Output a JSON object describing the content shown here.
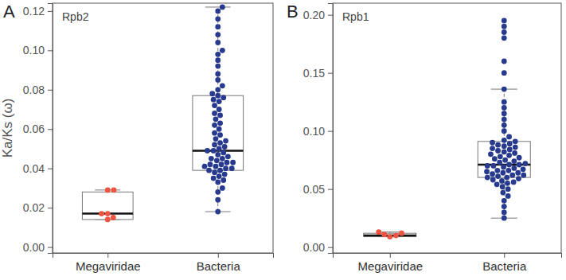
{
  "chart_data": [
    {
      "type": "box",
      "panel": "A",
      "title": "Rpb2",
      "y_label": "Ka/Ks (ω)",
      "categories": [
        "Megaviridae",
        "Bacteria"
      ],
      "colors": [
        "#f0533f",
        "#283a8e"
      ],
      "ylim": [
        -0.003,
        0.124
      ],
      "yticks": [
        {
          "value": 0,
          "label": "0.00"
        },
        {
          "value": 0.02,
          "label": "0.02"
        },
        {
          "value": 0.04,
          "label": "0.04"
        },
        {
          "value": 0.06,
          "label": "0.06"
        },
        {
          "value": 0.08,
          "label": "0.08"
        },
        {
          "value": 0.1,
          "label": "0.10"
        },
        {
          "value": 0.12,
          "label": "0.12"
        }
      ],
      "boxes": [
        {
          "whisker_low": 0.014,
          "q1": 0.014,
          "median": 0.017,
          "q3": 0.028,
          "whisker_high": 0.029
        },
        {
          "whisker_low": 0.018,
          "q1": 0.039,
          "median": 0.049,
          "q3": 0.077,
          "whisker_high": 0.122
        }
      ],
      "points": [
        [
          0.014,
          0.015,
          0.017,
          0.017,
          0.029,
          0.029
        ],
        [
          0.018,
          0.024,
          0.028,
          0.03,
          0.033,
          0.034,
          0.035,
          0.036,
          0.037,
          0.038,
          0.039,
          0.039,
          0.04,
          0.04,
          0.041,
          0.041,
          0.042,
          0.042,
          0.043,
          0.043,
          0.044,
          0.045,
          0.045,
          0.046,
          0.047,
          0.048,
          0.049,
          0.049,
          0.05,
          0.051,
          0.052,
          0.053,
          0.054,
          0.055,
          0.057,
          0.058,
          0.06,
          0.062,
          0.063,
          0.065,
          0.067,
          0.068,
          0.07,
          0.072,
          0.074,
          0.075,
          0.076,
          0.077,
          0.078,
          0.08,
          0.082,
          0.085,
          0.088,
          0.092,
          0.095,
          0.098,
          0.1,
          0.104,
          0.108,
          0.112,
          0.116,
          0.12,
          0.122
        ]
      ]
    },
    {
      "type": "box",
      "panel": "B",
      "title": "Rpb1",
      "categories": [
        "Megaviridae",
        "Bacteria"
      ],
      "colors": [
        "#f0533f",
        "#283a8e"
      ],
      "ylim": [
        -0.005,
        0.21
      ],
      "yticks": [
        {
          "value": 0,
          "label": "0.00"
        },
        {
          "value": 0.05,
          "label": "0.05"
        },
        {
          "value": 0.1,
          "label": "0.10"
        },
        {
          "value": 0.15,
          "label": "0.15"
        },
        {
          "value": 0.2,
          "label": "0.20"
        }
      ],
      "boxes": [
        {
          "whisker_low": 0.009,
          "q1": 0.009,
          "median": 0.01,
          "q3": 0.012,
          "whisker_high": 0.013
        },
        {
          "whisker_low": 0.025,
          "q1": 0.06,
          "median": 0.071,
          "q3": 0.091,
          "whisker_high": 0.136
        }
      ],
      "points": [
        [
          0.009,
          0.01,
          0.011,
          0.012,
          0.013
        ],
        [
          0.025,
          0.03,
          0.035,
          0.04,
          0.044,
          0.047,
          0.05,
          0.052,
          0.054,
          0.055,
          0.056,
          0.057,
          0.058,
          0.059,
          0.06,
          0.06,
          0.061,
          0.062,
          0.062,
          0.063,
          0.064,
          0.064,
          0.065,
          0.066,
          0.066,
          0.067,
          0.068,
          0.069,
          0.07,
          0.07,
          0.071,
          0.071,
          0.072,
          0.073,
          0.074,
          0.075,
          0.076,
          0.077,
          0.078,
          0.079,
          0.08,
          0.081,
          0.082,
          0.083,
          0.084,
          0.085,
          0.086,
          0.087,
          0.088,
          0.089,
          0.09,
          0.091,
          0.092,
          0.095,
          0.1,
          0.105,
          0.11,
          0.115,
          0.12,
          0.125,
          0.136,
          0.15,
          0.16,
          0.18,
          0.185,
          0.19,
          0.195
        ]
      ]
    }
  ]
}
